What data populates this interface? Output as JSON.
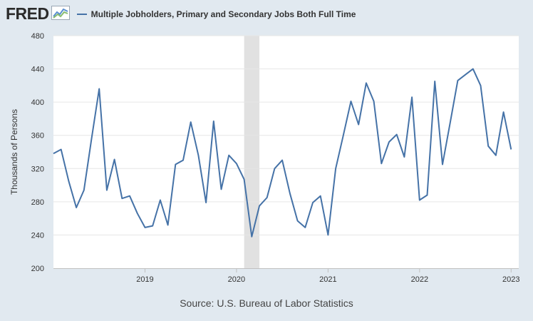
{
  "brand": {
    "name": "FRED",
    "icon": "fred-chart-logo-icon"
  },
  "colors": {
    "series": "#4572a7",
    "recession": "#e1e1e1",
    "grid": "#e6e6e6",
    "plot_bg": "#ffffff",
    "page_bg": "#e1e9f0"
  },
  "source": "Source: U.S. Bureau of Labor Statistics",
  "chart_data": {
    "type": "line",
    "title": "",
    "xlabel": "",
    "ylabel": "Thousands of Persons",
    "ylim": [
      200,
      480
    ],
    "yticks": [
      200,
      240,
      280,
      320,
      360,
      400,
      440,
      480
    ],
    "xlim": [
      "2018-01",
      "2023-02"
    ],
    "xticks": [
      {
        "date": "2019-01",
        "label": "2019"
      },
      {
        "date": "2020-01",
        "label": "2020"
      },
      {
        "date": "2021-01",
        "label": "2021"
      },
      {
        "date": "2022-01",
        "label": "2022"
      },
      {
        "date": "2023-01",
        "label": "2023"
      }
    ],
    "grid": true,
    "recession_shading": [
      {
        "start": "2020-02",
        "end": "2020-04"
      }
    ],
    "series": [
      {
        "name": "Multiple Jobholders, Primary and Secondary Jobs Both Full Time",
        "points": [
          [
            "2018-01",
            338
          ],
          [
            "2018-02",
            343
          ],
          [
            "2018-03",
            305
          ],
          [
            "2018-04",
            273
          ],
          [
            "2018-05",
            294
          ],
          [
            "2018-06",
            356
          ],
          [
            "2018-07",
            416
          ],
          [
            "2018-08",
            294
          ],
          [
            "2018-09",
            331
          ],
          [
            "2018-10",
            284
          ],
          [
            "2018-11",
            287
          ],
          [
            "2018-12",
            266
          ],
          [
            "2019-01",
            249
          ],
          [
            "2019-02",
            251
          ],
          [
            "2019-03",
            282
          ],
          [
            "2019-04",
            252
          ],
          [
            "2019-05",
            325
          ],
          [
            "2019-06",
            330
          ],
          [
            "2019-07",
            376
          ],
          [
            "2019-08",
            336
          ],
          [
            "2019-09",
            279
          ],
          [
            "2019-10",
            377
          ],
          [
            "2019-11",
            295
          ],
          [
            "2019-12",
            336
          ],
          [
            "2020-01",
            326
          ],
          [
            "2020-02",
            307
          ],
          [
            "2020-03",
            238
          ],
          [
            "2020-04",
            275
          ],
          [
            "2020-05",
            285
          ],
          [
            "2020-06",
            320
          ],
          [
            "2020-07",
            330
          ],
          [
            "2020-08",
            290
          ],
          [
            "2020-09",
            257
          ],
          [
            "2020-10",
            249
          ],
          [
            "2020-11",
            279
          ],
          [
            "2020-12",
            287
          ],
          [
            "2021-01",
            240
          ],
          [
            "2021-02",
            320
          ],
          [
            "2021-03",
            360
          ],
          [
            "2021-04",
            401
          ],
          [
            "2021-05",
            373
          ],
          [
            "2021-06",
            423
          ],
          [
            "2021-07",
            401
          ],
          [
            "2021-08",
            326
          ],
          [
            "2021-09",
            352
          ],
          [
            "2021-10",
            361
          ],
          [
            "2021-11",
            334
          ],
          [
            "2021-12",
            406
          ],
          [
            "2022-01",
            282
          ],
          [
            "2022-02",
            288
          ],
          [
            "2022-03",
            425
          ],
          [
            "2022-04",
            325
          ],
          [
            "2022-05",
            375
          ],
          [
            "2022-06",
            426
          ],
          [
            "2022-07",
            433
          ],
          [
            "2022-08",
            440
          ],
          [
            "2022-09",
            420
          ],
          [
            "2022-10",
            347
          ],
          [
            "2022-11",
            336
          ],
          [
            "2022-12",
            388
          ],
          [
            "2023-01",
            343
          ]
        ]
      }
    ]
  }
}
